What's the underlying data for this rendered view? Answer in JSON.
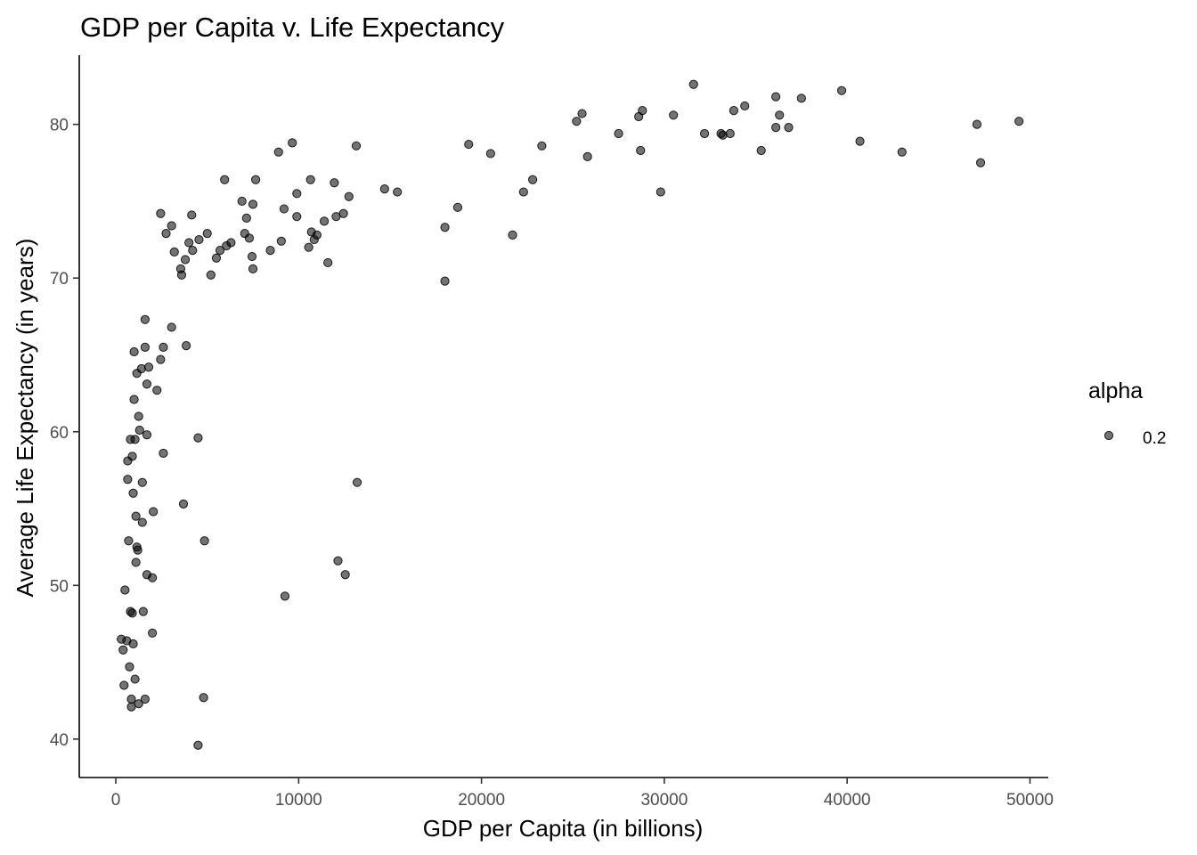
{
  "chart_data": {
    "type": "scatter",
    "title": "GDP per Capita v. Life Expectancy",
    "xlabel": "GDP per Capita (in billions)",
    "ylabel": "Average Life Expectancy (in years)",
    "xlim": [
      -2000,
      51000
    ],
    "ylim": [
      37.5,
      84.5
    ],
    "xticks": [
      0,
      10000,
      20000,
      30000,
      40000,
      50000
    ],
    "yticks": [
      40,
      50,
      60,
      70,
      80
    ],
    "grid": false,
    "legend": {
      "title": "alpha",
      "entries": [
        "0.2"
      ],
      "placement": "right"
    },
    "point_color": "#000000",
    "point_alpha": 0.6,
    "series": [
      {
        "points": [
          [
            300,
            46.5
          ],
          [
            400,
            45.8
          ],
          [
            450,
            43.5
          ],
          [
            500,
            49.7
          ],
          [
            600,
            46.4
          ],
          [
            650,
            56.9
          ],
          [
            650,
            58.1
          ],
          [
            700,
            52.9
          ],
          [
            750,
            44.7
          ],
          [
            800,
            48.3
          ],
          [
            800,
            59.5
          ],
          [
            850,
            42.1
          ],
          [
            850,
            42.6
          ],
          [
            900,
            58.4
          ],
          [
            900,
            48.2
          ],
          [
            950,
            46.2
          ],
          [
            950,
            56.0
          ],
          [
            1000,
            62.1
          ],
          [
            1000,
            65.2
          ],
          [
            1050,
            43.9
          ],
          [
            1050,
            59.5
          ],
          [
            1100,
            54.5
          ],
          [
            1100,
            51.5
          ],
          [
            1150,
            52.5
          ],
          [
            1150,
            63.8
          ],
          [
            1200,
            52.3
          ],
          [
            1250,
            61.0
          ],
          [
            1250,
            42.3
          ],
          [
            1300,
            60.1
          ],
          [
            1400,
            64.1
          ],
          [
            1450,
            54.1
          ],
          [
            1450,
            56.7
          ],
          [
            1500,
            48.3
          ],
          [
            1600,
            42.6
          ],
          [
            1600,
            65.5
          ],
          [
            1600,
            67.3
          ],
          [
            1700,
            59.8
          ],
          [
            1700,
            63.1
          ],
          [
            1700,
            50.7
          ],
          [
            1800,
            64.2
          ],
          [
            2000,
            46.9
          ],
          [
            2000,
            50.5
          ],
          [
            2050,
            54.8
          ],
          [
            2250,
            62.7
          ],
          [
            2450,
            64.7
          ],
          [
            2450,
            74.2
          ],
          [
            2600,
            58.6
          ],
          [
            2600,
            65.5
          ],
          [
            2750,
            72.9
          ],
          [
            3050,
            73.4
          ],
          [
            3050,
            66.8
          ],
          [
            3200,
            71.7
          ],
          [
            3550,
            70.6
          ],
          [
            3600,
            70.2
          ],
          [
            3700,
            55.3
          ],
          [
            3800,
            71.2
          ],
          [
            3850,
            65.6
          ],
          [
            4000,
            72.3
          ],
          [
            4150,
            74.1
          ],
          [
            4200,
            71.8
          ],
          [
            4500,
            59.6
          ],
          [
            4500,
            39.6
          ],
          [
            4550,
            72.5
          ],
          [
            4800,
            42.7
          ],
          [
            4850,
            52.9
          ],
          [
            5000,
            72.9
          ],
          [
            5200,
            70.2
          ],
          [
            5500,
            71.3
          ],
          [
            5700,
            71.8
          ],
          [
            5950,
            76.4
          ],
          [
            6050,
            72.1
          ],
          [
            6300,
            72.3
          ],
          [
            6900,
            75.0
          ],
          [
            7050,
            72.9
          ],
          [
            7150,
            73.9
          ],
          [
            7300,
            72.6
          ],
          [
            7450,
            71.4
          ],
          [
            7500,
            74.8
          ],
          [
            7500,
            70.6
          ],
          [
            7650,
            76.4
          ],
          [
            8450,
            71.8
          ],
          [
            8900,
            78.2
          ],
          [
            9050,
            72.4
          ],
          [
            9200,
            74.5
          ],
          [
            9250,
            49.3
          ],
          [
            9650,
            78.8
          ],
          [
            9900,
            75.5
          ],
          [
            9900,
            74.0
          ],
          [
            10550,
            72.0
          ],
          [
            10650,
            76.4
          ],
          [
            10700,
            73.0
          ],
          [
            10850,
            72.5
          ],
          [
            11000,
            72.8
          ],
          [
            11400,
            73.7
          ],
          [
            11600,
            71.0
          ],
          [
            11950,
            76.2
          ],
          [
            12050,
            74.0
          ],
          [
            12150,
            51.6
          ],
          [
            12450,
            74.2
          ],
          [
            12550,
            50.7
          ],
          [
            12750,
            75.3
          ],
          [
            13150,
            78.6
          ],
          [
            13200,
            56.7
          ],
          [
            14700,
            75.8
          ],
          [
            15400,
            75.6
          ],
          [
            18000,
            73.3
          ],
          [
            18000,
            69.8
          ],
          [
            18700,
            74.6
          ],
          [
            19300,
            78.7
          ],
          [
            20500,
            78.1
          ],
          [
            21700,
            72.8
          ],
          [
            22300,
            75.6
          ],
          [
            22800,
            76.4
          ],
          [
            23300,
            78.6
          ],
          [
            25200,
            80.2
          ],
          [
            25500,
            80.7
          ],
          [
            25800,
            77.9
          ],
          [
            27500,
            79.4
          ],
          [
            28600,
            80.5
          ],
          [
            28700,
            78.3
          ],
          [
            28800,
            80.9
          ],
          [
            29800,
            75.6
          ],
          [
            30500,
            80.6
          ],
          [
            31600,
            82.6
          ],
          [
            32200,
            79.4
          ],
          [
            33100,
            79.4
          ],
          [
            33200,
            79.3
          ],
          [
            33600,
            79.4
          ],
          [
            33800,
            80.9
          ],
          [
            34400,
            81.2
          ],
          [
            35300,
            78.3
          ],
          [
            36100,
            79.8
          ],
          [
            36100,
            81.8
          ],
          [
            36300,
            80.6
          ],
          [
            36800,
            79.8
          ],
          [
            37500,
            81.7
          ],
          [
            39700,
            82.2
          ],
          [
            40700,
            78.9
          ],
          [
            43000,
            78.2
          ],
          [
            47100,
            80.0
          ],
          [
            47300,
            77.5
          ],
          [
            49400,
            80.2
          ]
        ]
      }
    ]
  }
}
